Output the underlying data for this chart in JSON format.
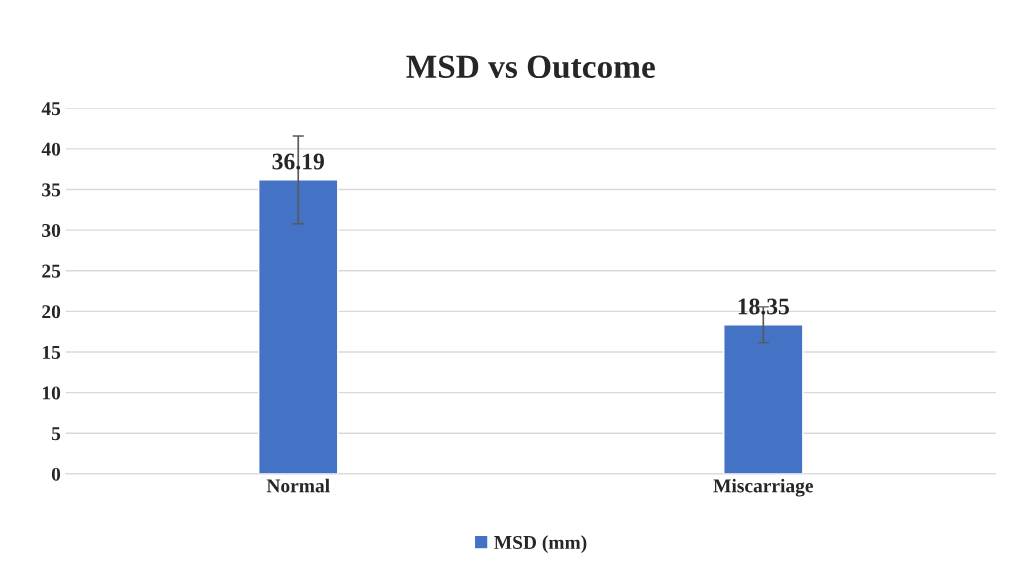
{
  "chart_data": {
    "type": "bar",
    "title": "MSD vs Outcome",
    "categories": [
      "Normal",
      "Miscarriage"
    ],
    "series": [
      {
        "name": "MSD (mm)",
        "color": "#4472c4",
        "values": [
          36.19,
          18.35
        ],
        "errors": [
          5.4,
          2.2
        ]
      }
    ],
    "ylim": [
      0,
      45
    ],
    "yticks": [
      0,
      5,
      10,
      15,
      20,
      25,
      30,
      35,
      40,
      45
    ],
    "grid": "y",
    "legend": "bottom",
    "data_labels": true
  }
}
